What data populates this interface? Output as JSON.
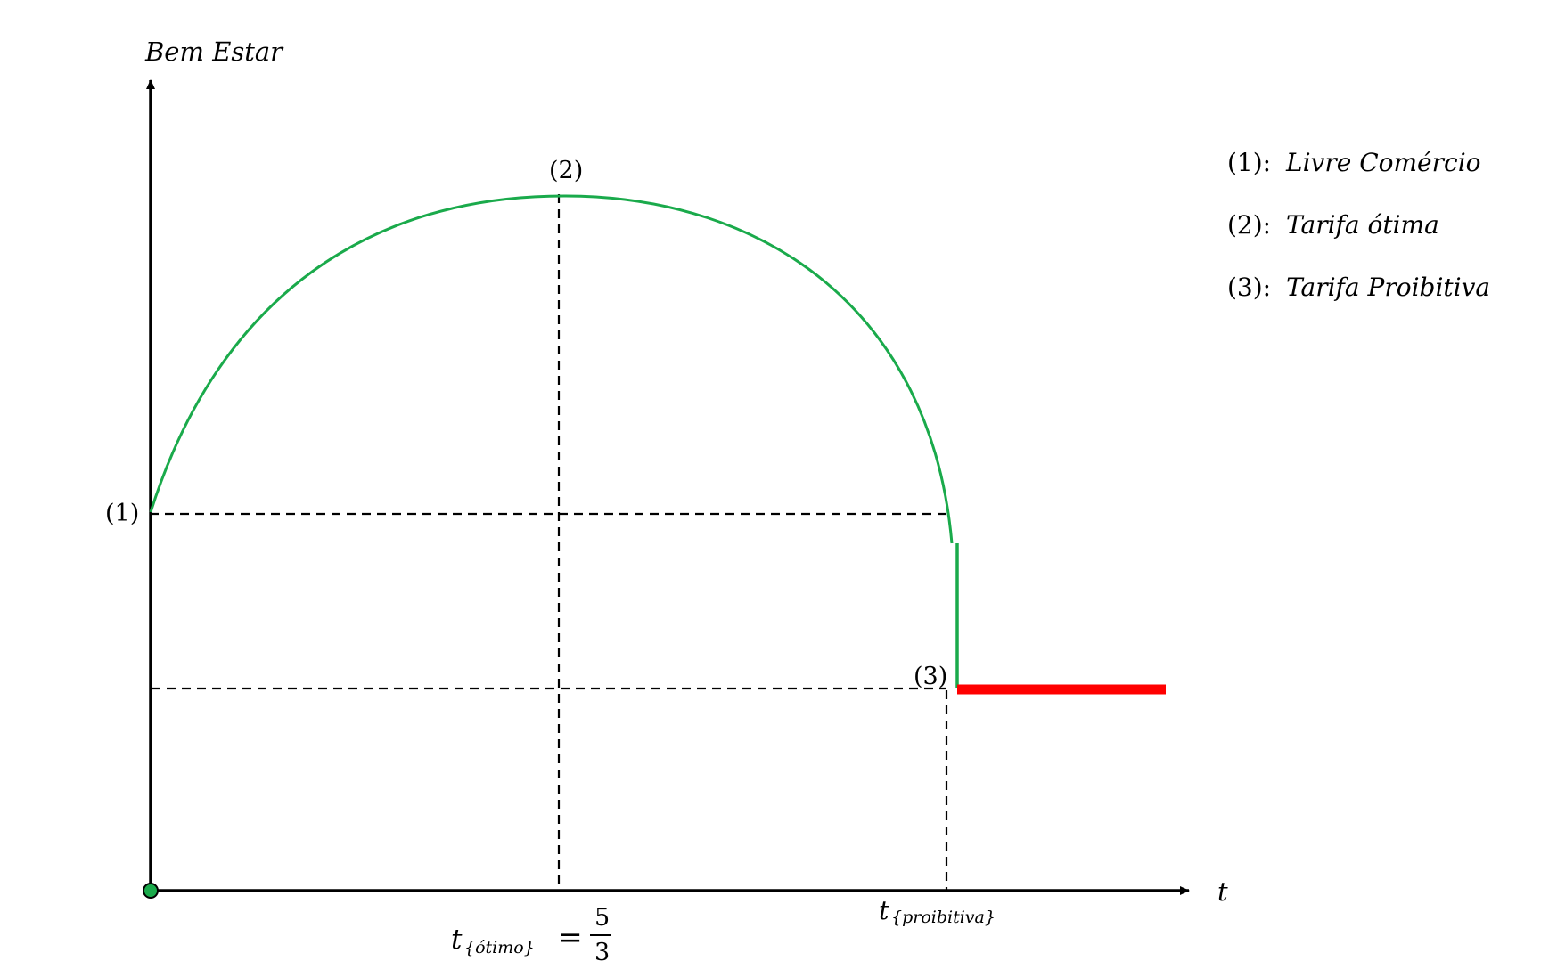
{
  "diagram": {
    "y_axis_label": "Bem Estar",
    "x_axis_label": "t",
    "points": {
      "p1": "(1)",
      "p2": "(2)",
      "p3": "(3)"
    },
    "x_ticks": {
      "optimal_symbol": "t",
      "optimal_subscript": "{ótimo}",
      "optimal_equals": "=",
      "optimal_numerator": "5",
      "optimal_denominator": "3",
      "prohibitive_symbol": "t",
      "prohibitive_subscript": "{proibitiva}"
    },
    "legend": [
      {
        "key": "(1):",
        "label": "Livre Comércio"
      },
      {
        "key": "(2):",
        "label": "Tarifa ótima"
      },
      {
        "key": "(3):",
        "label": "Tarifa Proibitiva"
      }
    ],
    "colors": {
      "welfare_curve": "#1aaa4b",
      "prohibitive_segment": "#ff0000",
      "axes": "#000000",
      "origin_dot": "#1aaa4b"
    }
  }
}
